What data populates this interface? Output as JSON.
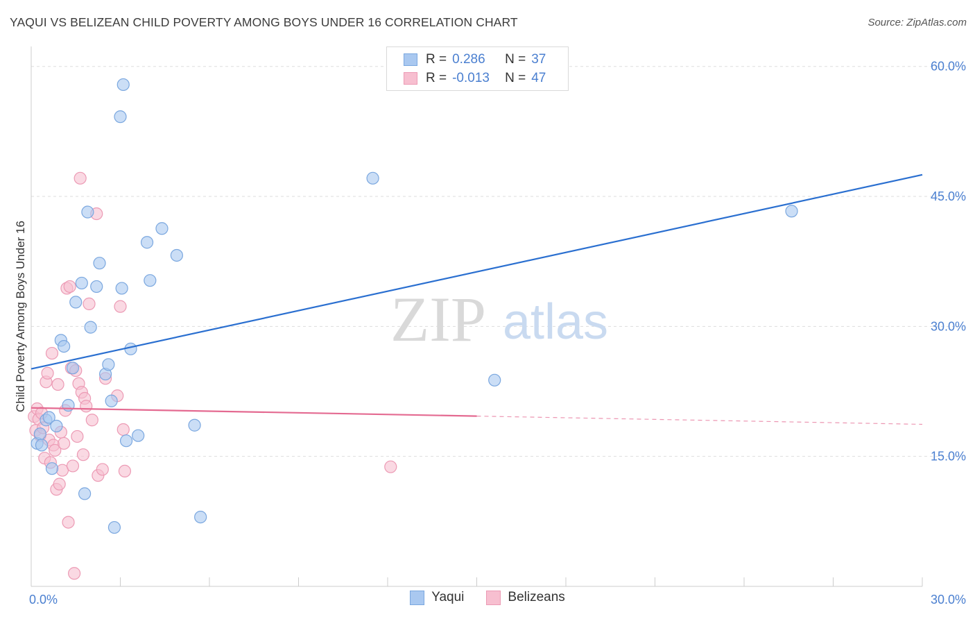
{
  "title": "YAQUI VS BELIZEAN CHILD POVERTY AMONG BOYS UNDER 16 CORRELATION CHART",
  "source": "Source: ZipAtlas.com",
  "watermark": {
    "zip": "ZIP",
    "atlas": "atlas"
  },
  "colors": {
    "blue_fill": "#a9c8f0",
    "blue_stroke": "#7aa7df",
    "blue_line": "#2a6fd0",
    "pink_fill": "#f7bfd0",
    "pink_stroke": "#ec9ab4",
    "pink_line": "#e46a91",
    "axis_text": "#4a7fd0",
    "grid": "#dddddd"
  },
  "legend_top": {
    "r_label": "R =",
    "n_label": "N =",
    "rows": [
      {
        "r": "0.286",
        "n": "37"
      },
      {
        "r": "-0.013",
        "n": "47"
      }
    ]
  },
  "chart_data": {
    "type": "scatter",
    "xlabel": "",
    "ylabel": "Child Poverty Among Boys Under 16",
    "xlim": [
      0,
      30
    ],
    "ylim": [
      0,
      61.5
    ],
    "x_tick_labels": [
      "0.0%",
      "30.0%"
    ],
    "y_ticks": [
      15,
      30,
      45,
      60
    ],
    "y_tick_labels": [
      "15.0%",
      "30.0%",
      "45.0%",
      "60.0%"
    ],
    "series": [
      {
        "name": "Yaqui",
        "trend": {
          "x0": 0,
          "y0": 25.1,
          "x1": 30,
          "y1": 47.5,
          "dashed_from": null
        },
        "points": [
          [
            0.2,
            16.5
          ],
          [
            0.3,
            17.6
          ],
          [
            0.35,
            16.3
          ],
          [
            0.5,
            19.2
          ],
          [
            0.6,
            19.5
          ],
          [
            0.7,
            13.6
          ],
          [
            0.85,
            18.5
          ],
          [
            1.0,
            28.4
          ],
          [
            1.1,
            27.7
          ],
          [
            1.25,
            20.9
          ],
          [
            1.4,
            25.2
          ],
          [
            1.5,
            32.8
          ],
          [
            1.7,
            35.0
          ],
          [
            1.8,
            10.7
          ],
          [
            1.9,
            43.2
          ],
          [
            2.0,
            29.9
          ],
          [
            2.2,
            34.6
          ],
          [
            2.3,
            37.3
          ],
          [
            2.5,
            24.5
          ],
          [
            2.6,
            25.6
          ],
          [
            2.7,
            21.4
          ],
          [
            2.8,
            6.8
          ],
          [
            3.0,
            54.2
          ],
          [
            3.05,
            34.4
          ],
          [
            3.1,
            57.9
          ],
          [
            3.2,
            16.8
          ],
          [
            3.35,
            27.4
          ],
          [
            3.6,
            17.4
          ],
          [
            3.9,
            39.7
          ],
          [
            4.0,
            35.3
          ],
          [
            4.4,
            41.3
          ],
          [
            4.9,
            38.2
          ],
          [
            5.5,
            18.6
          ],
          [
            5.7,
            8.0
          ],
          [
            11.5,
            47.1
          ],
          [
            15.6,
            23.8
          ],
          [
            25.6,
            43.3
          ]
        ]
      },
      {
        "name": "Belizeans",
        "trend": {
          "x0": 0,
          "y0": 20.6,
          "x1": 30,
          "y1": 18.7,
          "dashed_from": 15.0
        },
        "points": [
          [
            0.1,
            19.6
          ],
          [
            0.15,
            18.0
          ],
          [
            0.2,
            20.5
          ],
          [
            0.25,
            19.3
          ],
          [
            0.3,
            17.4
          ],
          [
            0.35,
            20.0
          ],
          [
            0.4,
            18.3
          ],
          [
            0.45,
            14.8
          ],
          [
            0.5,
            23.6
          ],
          [
            0.55,
            24.6
          ],
          [
            0.6,
            16.9
          ],
          [
            0.65,
            14.3
          ],
          [
            0.7,
            26.9
          ],
          [
            0.75,
            16.3
          ],
          [
            0.8,
            15.7
          ],
          [
            0.85,
            11.2
          ],
          [
            0.9,
            23.3
          ],
          [
            0.95,
            11.8
          ],
          [
            1.0,
            17.8
          ],
          [
            1.05,
            13.4
          ],
          [
            1.1,
            16.5
          ],
          [
            1.15,
            20.3
          ],
          [
            1.2,
            34.4
          ],
          [
            1.25,
            7.4
          ],
          [
            1.3,
            34.6
          ],
          [
            1.35,
            25.2
          ],
          [
            1.4,
            13.9
          ],
          [
            1.45,
            1.5
          ],
          [
            1.5,
            24.9
          ],
          [
            1.55,
            17.3
          ],
          [
            1.6,
            23.4
          ],
          [
            1.65,
            47.1
          ],
          [
            1.7,
            22.4
          ],
          [
            1.75,
            15.2
          ],
          [
            1.8,
            21.7
          ],
          [
            1.85,
            20.8
          ],
          [
            1.95,
            32.6
          ],
          [
            2.05,
            19.2
          ],
          [
            2.2,
            43.0
          ],
          [
            2.25,
            12.8
          ],
          [
            2.4,
            13.5
          ],
          [
            2.5,
            24.0
          ],
          [
            2.9,
            22.0
          ],
          [
            3.0,
            32.3
          ],
          [
            3.1,
            18.1
          ],
          [
            3.15,
            13.3
          ],
          [
            12.1,
            13.8
          ]
        ]
      }
    ]
  }
}
